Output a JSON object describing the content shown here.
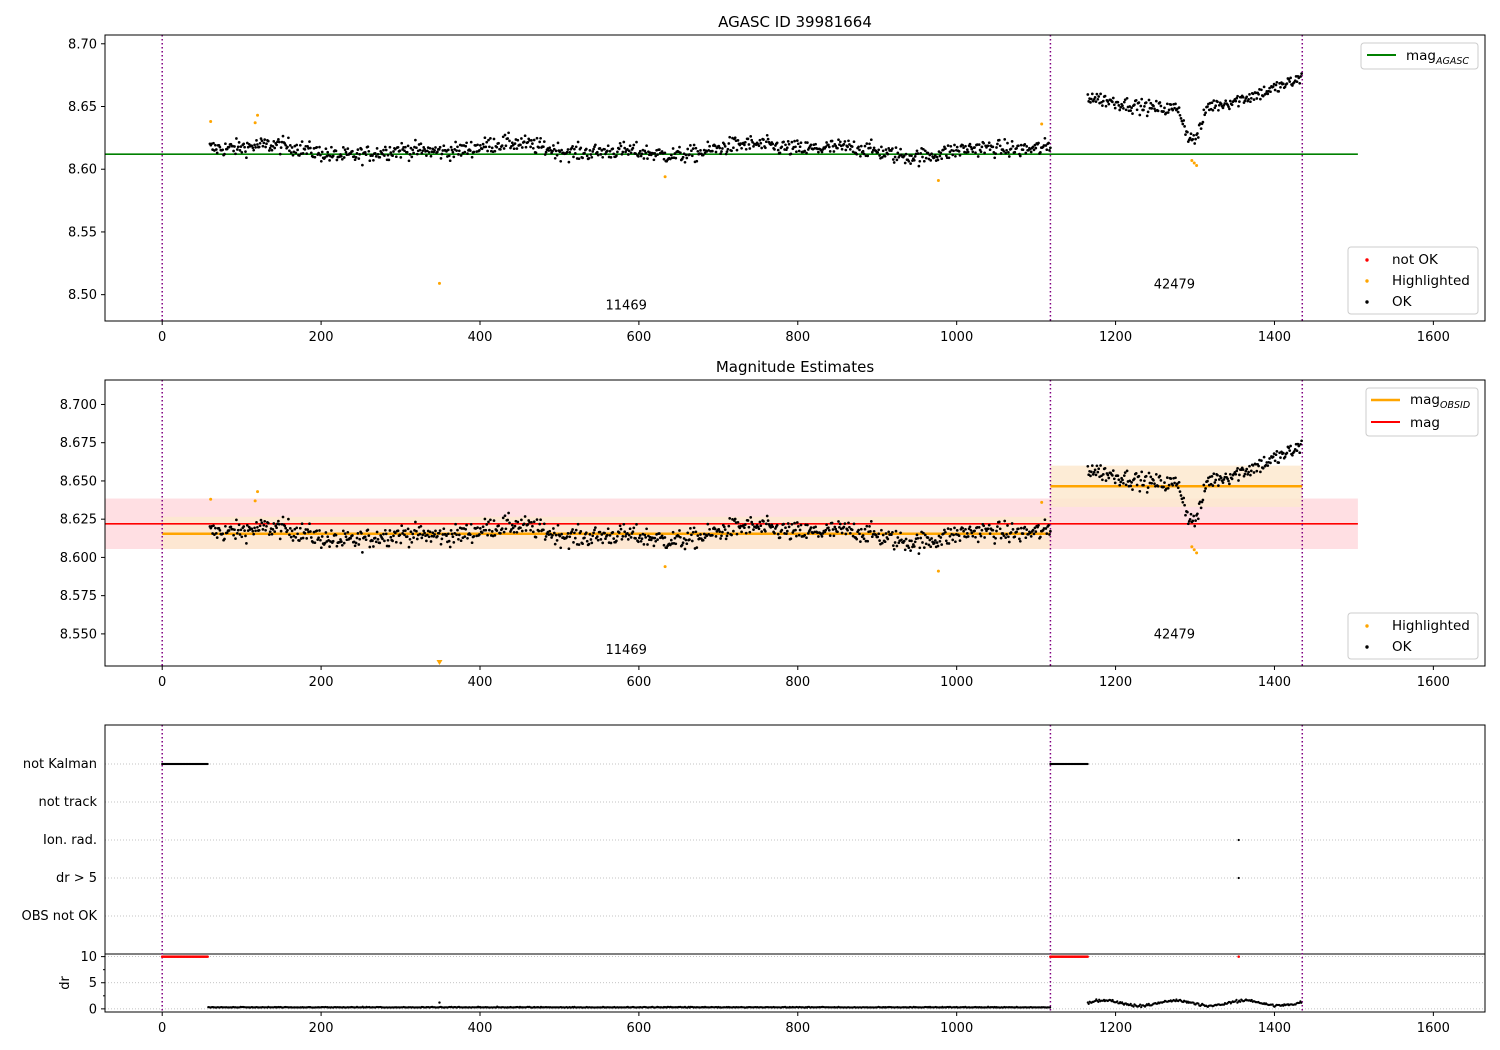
{
  "colors": {
    "ok": "#000000",
    "highlighted": "#ffa500",
    "not_ok": "#ff0000",
    "agasc_line": "#008000",
    "obsid_line": "#ffa500",
    "mag_line": "#ff0000",
    "obsid_band": "#fde9cf",
    "mag_band": "#ffdfe3",
    "obs_boundary": "#800080",
    "grid": "#b0b0b0"
  },
  "chart_data": [
    {
      "type": "scatter",
      "title": "AGASC ID 39981664",
      "xlim": [
        -72,
        1665
      ],
      "ylim": [
        8.479,
        8.707
      ],
      "xticks": [
        0,
        200,
        400,
        600,
        800,
        1000,
        1200,
        1400,
        1600
      ],
      "yticks": [
        8.5,
        8.55,
        8.6,
        8.65,
        8.7
      ],
      "ytick_labels": [
        "8.50",
        "8.55",
        "8.60",
        "8.65",
        "8.70"
      ],
      "legend_lines": [
        {
          "label": "mag",
          "sub": "AGASC",
          "color_key": "agasc_line"
        }
      ],
      "legend_points": [
        "not OK",
        "Highlighted",
        "OK"
      ],
      "lines": [
        {
          "name": "mag_AGASC",
          "y": 8.612,
          "x": [
            -72,
            1505
          ]
        }
      ],
      "obsid_labels": [
        {
          "text": "11469",
          "x": 558,
          "y": 8.488
        },
        {
          "text": "42479",
          "x": 1248,
          "y": 8.505
        }
      ],
      "segments": [
        {
          "x0": 60,
          "x1": 1118,
          "mean": 8.6155,
          "amp": 0.0055,
          "noise": 0.0065
        },
        {
          "x0": 1165,
          "x1": 1435,
          "mean": 8.647,
          "trend": "varying"
        }
      ],
      "highlighted_points": [
        [
          61,
          8.638
        ],
        [
          117,
          8.637
        ],
        [
          120,
          8.643
        ],
        [
          349,
          8.509
        ],
        [
          633,
          8.594
        ],
        [
          977,
          8.591
        ],
        [
          1107,
          8.636
        ],
        [
          1296,
          8.607
        ],
        [
          1299,
          8.605
        ],
        [
          1302,
          8.603
        ]
      ]
    },
    {
      "type": "scatter",
      "title": "Magnitude Estimates",
      "xlim": [
        -72,
        1665
      ],
      "ylim": [
        8.529,
        8.716
      ],
      "xticks": [
        0,
        200,
        400,
        600,
        800,
        1000,
        1200,
        1400,
        1600
      ],
      "yticks": [
        8.55,
        8.575,
        8.6,
        8.625,
        8.65,
        8.675,
        8.7
      ],
      "ytick_labels": [
        "8.550",
        "8.575",
        "8.600",
        "8.625",
        "8.650",
        "8.675",
        "8.700"
      ],
      "legend_lines": [
        {
          "label": "mag",
          "sub": "OBSID",
          "color_key": "obsid_line"
        },
        {
          "label": "mag",
          "sub": "",
          "color_key": "mag_line"
        }
      ],
      "legend_points": [
        "Highlighted",
        "OK"
      ],
      "mag": {
        "value": 8.622,
        "band": [
          8.6055,
          8.6385
        ],
        "x": [
          -72,
          1505
        ]
      },
      "mag_obsid": [
        {
          "value": 8.6155,
          "band": [
            8.6055,
            8.6265
          ],
          "x": [
            0,
            1118
          ]
        },
        {
          "value": 8.6465,
          "band": [
            8.633,
            8.66
          ],
          "x": [
            1118,
            1435
          ]
        }
      ],
      "obsid_labels": [
        {
          "text": "11469",
          "x": 558,
          "y": 8.537
        },
        {
          "text": "42479",
          "x": 1248,
          "y": 8.547
        }
      ]
    },
    {
      "type": "scatter",
      "xlim": [
        -72,
        1665
      ],
      "xticks": [
        0,
        200,
        400,
        600,
        800,
        1000,
        1200,
        1400,
        1600
      ],
      "flag_labels": [
        "not Kalman",
        "not track",
        "Ion. rad.",
        "dr > 5",
        "OBS not OK"
      ],
      "flag_ranges": {
        "not Kalman": [
          [
            0,
            58
          ],
          [
            1118,
            1165
          ]
        ],
        "Ion. rad.": [
          [
            1355,
            1355
          ]
        ],
        "dr > 5": [
          [
            1355,
            1355
          ]
        ]
      },
      "dr": {
        "ylabel": "dr",
        "ylim": [
          -0.6,
          10.5
        ],
        "yticks": [
          0,
          5,
          10
        ],
        "ytick_labels": [
          "0",
          "5",
          "10"
        ],
        "clipped_value": 10,
        "clipped_ranges": [
          [
            0,
            58
          ],
          [
            1118,
            1165
          ],
          [
            1355,
            1355
          ]
        ],
        "segments": [
          {
            "x0": 58,
            "x1": 1118,
            "level": 0.25
          },
          {
            "x0": 1165,
            "x1": 1435,
            "level": 1.1
          }
        ]
      }
    }
  ],
  "obs_boundaries": [
    0,
    1118,
    1435
  ]
}
